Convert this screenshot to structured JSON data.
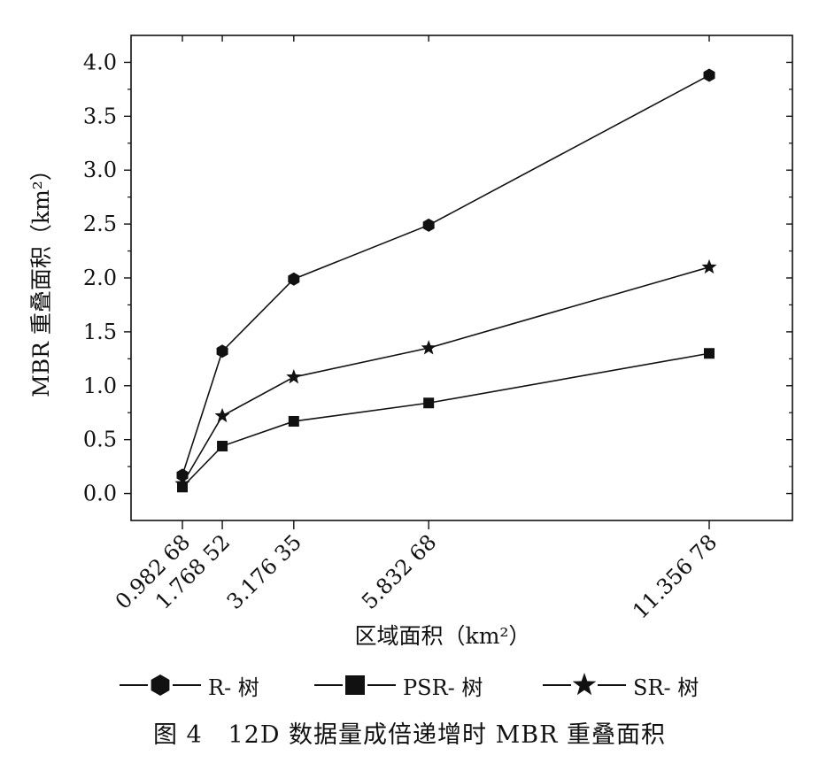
{
  "chart_data": {
    "type": "line",
    "xlabel": "区域面积（km²）",
    "ylabel": "MBR 重叠面积（km²）",
    "x": [
      0.98268,
      1.76852,
      3.17635,
      5.83268,
      11.35678
    ],
    "x_tick_labels": [
      "0.982 68",
      "1.768 52",
      "3.176 35",
      "5.832 68",
      "11.356 78"
    ],
    "ylim": [
      -0.25,
      4.25
    ],
    "y_ticks": [
      0.0,
      0.5,
      1.0,
      1.5,
      2.0,
      2.5,
      3.0,
      3.5,
      4.0
    ],
    "y_tick_labels": [
      "0.0",
      "0.5",
      "1.0",
      "1.5",
      "2.0",
      "2.5",
      "3.0",
      "3.5",
      "4.0"
    ],
    "grid": false,
    "legend_position": "bottom",
    "series": [
      {
        "name": "R- 树",
        "marker": "hexagon",
        "values": [
          0.17,
          1.32,
          1.99,
          2.49,
          3.88
        ]
      },
      {
        "name": "PSR- 树",
        "marker": "square",
        "values": [
          0.06,
          0.44,
          0.67,
          0.84,
          1.3
        ]
      },
      {
        "name": "SR- 树",
        "marker": "star",
        "values": [
          0.09,
          0.72,
          1.08,
          1.35,
          2.1
        ]
      }
    ],
    "line_color": "#111111"
  },
  "caption": {
    "figure_no": "图 4",
    "text": "12D 数据量成倍递增时 MBR 重叠面积"
  }
}
